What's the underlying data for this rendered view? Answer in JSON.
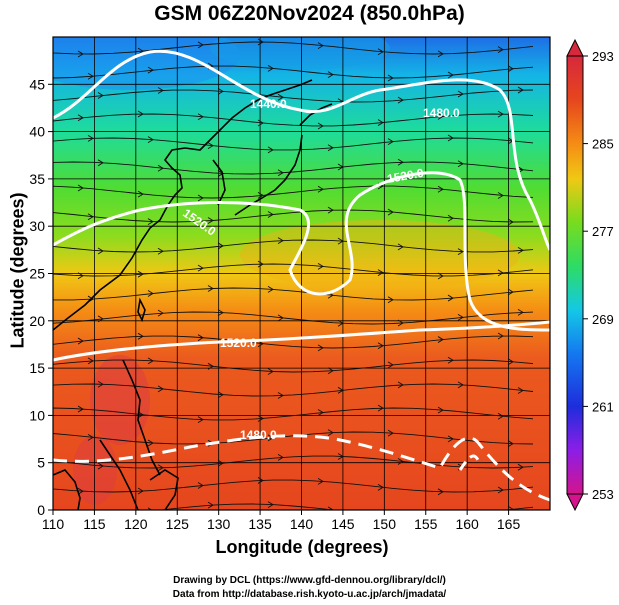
{
  "title": "GSM 06Z20Nov2024 (850.0hPa)",
  "xlabel": "Longitude (degrees)",
  "ylabel": "Latitude  (degrees)",
  "credits": [
    "Drawing by DCL (https://www.gfd-dennou.org/library/dcl/)",
    "Data from http://database.rish.kyoto-u.ac.jp/arch/jmadata/"
  ],
  "map": {
    "lon_range": [
      110,
      170
    ],
    "lat_range": [
      0,
      50
    ],
    "lon_ticks": [
      "110",
      "115",
      "120",
      "125",
      "130",
      "135",
      "140",
      "145",
      "150",
      "155",
      "160",
      "165"
    ],
    "lat_ticks": [
      "0",
      "5",
      "10",
      "15",
      "20",
      "25",
      "30",
      "35",
      "40",
      "45"
    ],
    "grid": true,
    "field": "temperature (K)",
    "streamlines": "wind"
  },
  "colorbar": {
    "ticks": [
      "293",
      "285",
      "277",
      "269",
      "261",
      "253"
    ],
    "min": 253,
    "max": 293,
    "colors": [
      "#d4148c",
      "#8c1ee6",
      "#1e2ddc",
      "#1478f0",
      "#14c8e6",
      "#2ddc64",
      "#78dc1e",
      "#f0c814",
      "#f58c14",
      "#e6461e",
      "#d7283c"
    ]
  },
  "contour_labels": [
    "1440.0",
    "1480.0",
    "1520.0",
    "1520.0",
    "1520.0",
    "1480.0"
  ]
}
